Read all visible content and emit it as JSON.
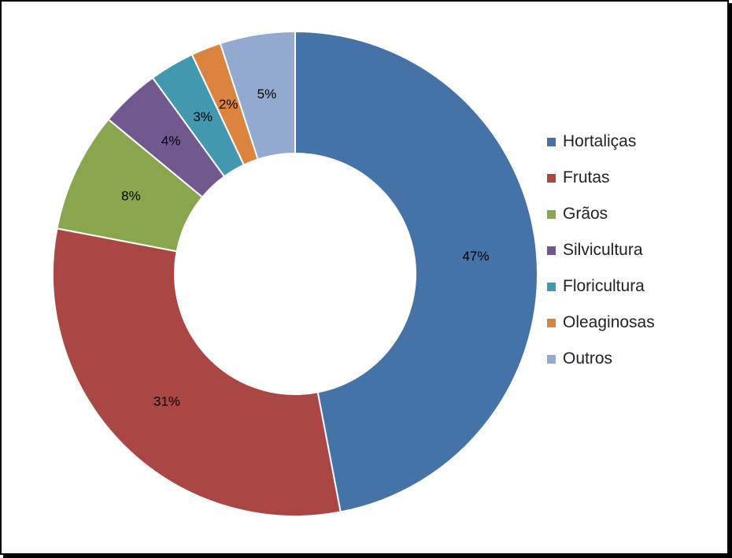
{
  "chart_data": {
    "type": "pie",
    "variant": "donut",
    "legend_position": "right",
    "slices": [
      {
        "name": "Hortaliças",
        "value": 47,
        "label": "47%",
        "color": "#4572a7"
      },
      {
        "name": "Frutas",
        "value": 31,
        "label": "31%",
        "color": "#aa4643"
      },
      {
        "name": "Grãos",
        "value": 8,
        "label": "8%",
        "color": "#89a54e"
      },
      {
        "name": "Silvicultura",
        "value": 4,
        "label": "4%",
        "color": "#71588f"
      },
      {
        "name": "Floricultura",
        "value": 3,
        "label": "3%",
        "color": "#4198af"
      },
      {
        "name": "Oleaginosas",
        "value": 2,
        "label": "2%",
        "color": "#db843d"
      },
      {
        "name": "Outros",
        "value": 5,
        "label": "5%",
        "color": "#93a9cf"
      }
    ]
  }
}
